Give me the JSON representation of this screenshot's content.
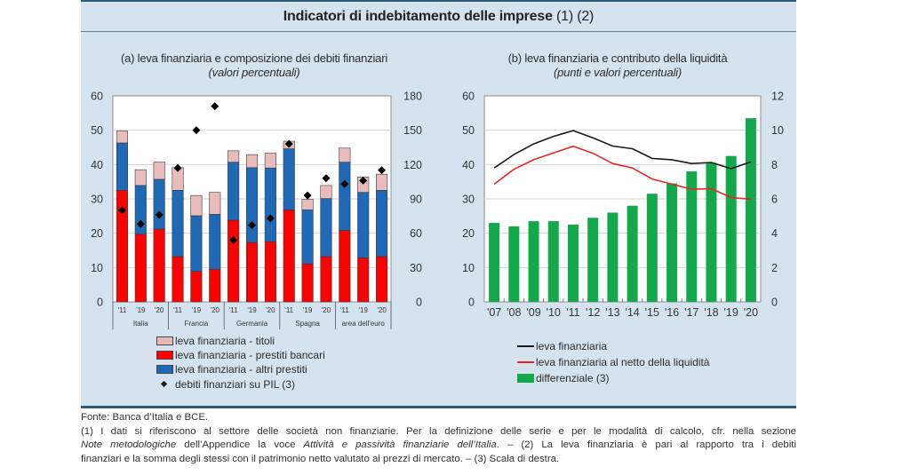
{
  "title": {
    "main": "Indicatori di indebitamento delle imprese",
    "notes": "(1) (2)"
  },
  "panels": {
    "a": {
      "title": "(a) leva finanziaria e composizione dei debiti finanziari",
      "subtitle": "(valori percentuali)"
    },
    "b": {
      "title": "(b) leva finanziaria e contributo della liquidità",
      "subtitle": "(punti e valori percentuali)"
    }
  },
  "legend_a": [
    {
      "label": "leva finanziaria - titoli",
      "kind": "box",
      "color": "#e9bcbc"
    },
    {
      "label": "leva finanziaria - prestiti bancari",
      "kind": "box",
      "color": "#ff0000"
    },
    {
      "label": "leva finanziaria - altri prestiti",
      "kind": "box",
      "color": "#1f69b7"
    },
    {
      "label": "debiti finanziari su PIL (3)",
      "kind": "diamond",
      "color": "#000000"
    }
  ],
  "legend_b": [
    {
      "label": "leva finanziaria",
      "kind": "line",
      "color": "#1a1a1a"
    },
    {
      "label": "leva finanziaria al netto della liquidità",
      "kind": "line",
      "color": "#e5262a"
    },
    {
      "label": "differenziale (3)",
      "kind": "box",
      "color": "#14a84d"
    }
  ],
  "footnotes": {
    "source": "Fonte: Banca d’Italia e BCE.",
    "line1": "(1) I dati si riferiscono al settore delle società non finanziarie. Per la definizione delle serie e per le modalità di calcolo, cfr. nella sezione",
    "line2": [
      {
        "text": "Note metodologiche",
        "italic": true
      },
      {
        "text": " dell’Appendice la voce ",
        "italic": false
      },
      {
        "text": "Attività e passività finanziarie dell’Italia",
        "italic": true
      },
      {
        "text": ". – (2) La leva finanziaria è pari al rapporto tra i debiti",
        "italic": false
      }
    ],
    "line3": "finanziari e la somma degli stessi con il patrimonio netto valutato ai prezzi di mercato. – (3) Scala di destra."
  },
  "chart_data": [
    {
      "type": "bar",
      "stacked": true,
      "title": "(a) leva finanziaria e composizione dei debiti finanziari",
      "subtitle": "(valori percentuali)",
      "groups": [
        {
          "name": "Italia",
          "years": [
            "'11",
            "'19",
            "'20"
          ]
        },
        {
          "name": "Francia",
          "years": [
            "'11",
            "'19",
            "'20"
          ]
        },
        {
          "name": "Germania",
          "years": [
            "'11",
            "'19",
            "'20"
          ]
        },
        {
          "name": "Spagna",
          "years": [
            "'11",
            "'19",
            "'20"
          ]
        },
        {
          "name": "area dell'euro",
          "years": [
            "'11",
            "'19",
            "'20"
          ]
        }
      ],
      "categories": [
        "Italia '11",
        "Italia '19",
        "Italia '20",
        "Francia '11",
        "Francia '19",
        "Francia '20",
        "Germania '11",
        "Germania '19",
        "Germania '20",
        "Spagna '11",
        "Spagna '19",
        "Spagna '20",
        "area dell'euro '11",
        "area dell'euro '19",
        "area dell'euro '20"
      ],
      "series": [
        {
          "name": "leva finanziaria - prestiti bancari",
          "type": "bar",
          "axis": "left",
          "color": "#ff0000",
          "values": [
            32.5,
            19.7,
            21.2,
            13.2,
            8.9,
            9.5,
            23.8,
            17.3,
            17.5,
            26.8,
            11.1,
            13.2,
            20.8,
            12.8,
            13.2
          ]
        },
        {
          "name": "leva finanziaria - altri prestiti",
          "type": "bar",
          "axis": "left",
          "color": "#1f69b7",
          "values": [
            13.8,
            14.2,
            14.5,
            19.3,
            16.2,
            16.0,
            16.9,
            21.8,
            21.5,
            17.8,
            15.7,
            16.9,
            19.9,
            19.1,
            19.3
          ]
        },
        {
          "name": "leva finanziaria - titoli",
          "type": "bar",
          "axis": "left",
          "color": "#e9bcbc",
          "values": [
            3.5,
            4.6,
            5.0,
            6.6,
            5.9,
            6.4,
            3.3,
            3.8,
            4.3,
            2.2,
            3.1,
            3.8,
            4.1,
            4.5,
            4.7
          ]
        },
        {
          "name": "debiti finanziari su PIL (3)",
          "type": "scatter",
          "marker": "diamond",
          "axis": "right",
          "color": "#000000",
          "values": [
            80,
            68,
            76,
            117,
            150,
            171,
            54,
            67,
            73,
            138,
            93,
            108,
            103,
            106,
            115
          ]
        }
      ],
      "y_left": {
        "range": [
          0,
          60
        ],
        "ticks": [
          "0",
          "10",
          "20",
          "30",
          "40",
          "50",
          "60"
        ]
      },
      "y_right": {
        "range": [
          0,
          180
        ],
        "ticks": [
          "0",
          "30",
          "60",
          "90",
          "120",
          "150",
          "180"
        ]
      },
      "grid": true,
      "legend_position": "bottom"
    },
    {
      "type": "bar+line",
      "title": "(b) leva finanziaria e contributo della liquidità",
      "subtitle": "(punti e valori percentuali)",
      "categories": [
        "'07",
        "'08",
        "'09",
        "'10",
        "'11",
        "'12",
        "'13",
        "'14",
        "'15",
        "'16",
        "'17",
        "'18",
        "'19",
        "'20"
      ],
      "series": [
        {
          "name": "differenziale (3)",
          "type": "bar",
          "axis": "right",
          "color": "#14a84d",
          "values": [
            4.6,
            4.4,
            4.7,
            4.7,
            4.5,
            4.9,
            5.2,
            5.6,
            6.3,
            6.9,
            7.6,
            8.1,
            8.5,
            10.7
          ]
        },
        {
          "name": "leva finanziaria al netto della liquidità",
          "type": "line",
          "axis": "left",
          "color": "#e5262a",
          "values": [
            34.3,
            38.6,
            41.4,
            43.4,
            45.3,
            43.3,
            40.3,
            39.0,
            35.8,
            34.3,
            32.8,
            33.0,
            30.4,
            29.9
          ]
        },
        {
          "name": "leva finanziaria",
          "type": "line",
          "axis": "left",
          "color": "#1a1a1a",
          "values": [
            39.0,
            42.9,
            46.0,
            48.2,
            49.9,
            47.8,
            45.4,
            44.6,
            41.8,
            41.4,
            40.3,
            40.6,
            38.8,
            40.8
          ]
        }
      ],
      "y_left": {
        "range": [
          0,
          60
        ],
        "ticks": [
          "0",
          "10",
          "20",
          "30",
          "40",
          "50",
          "60"
        ]
      },
      "y_right": {
        "range": [
          0,
          12
        ],
        "ticks": [
          "0",
          "2",
          "4",
          "6",
          "8",
          "10",
          "12"
        ]
      },
      "grid": true,
      "legend_position": "bottom"
    }
  ]
}
